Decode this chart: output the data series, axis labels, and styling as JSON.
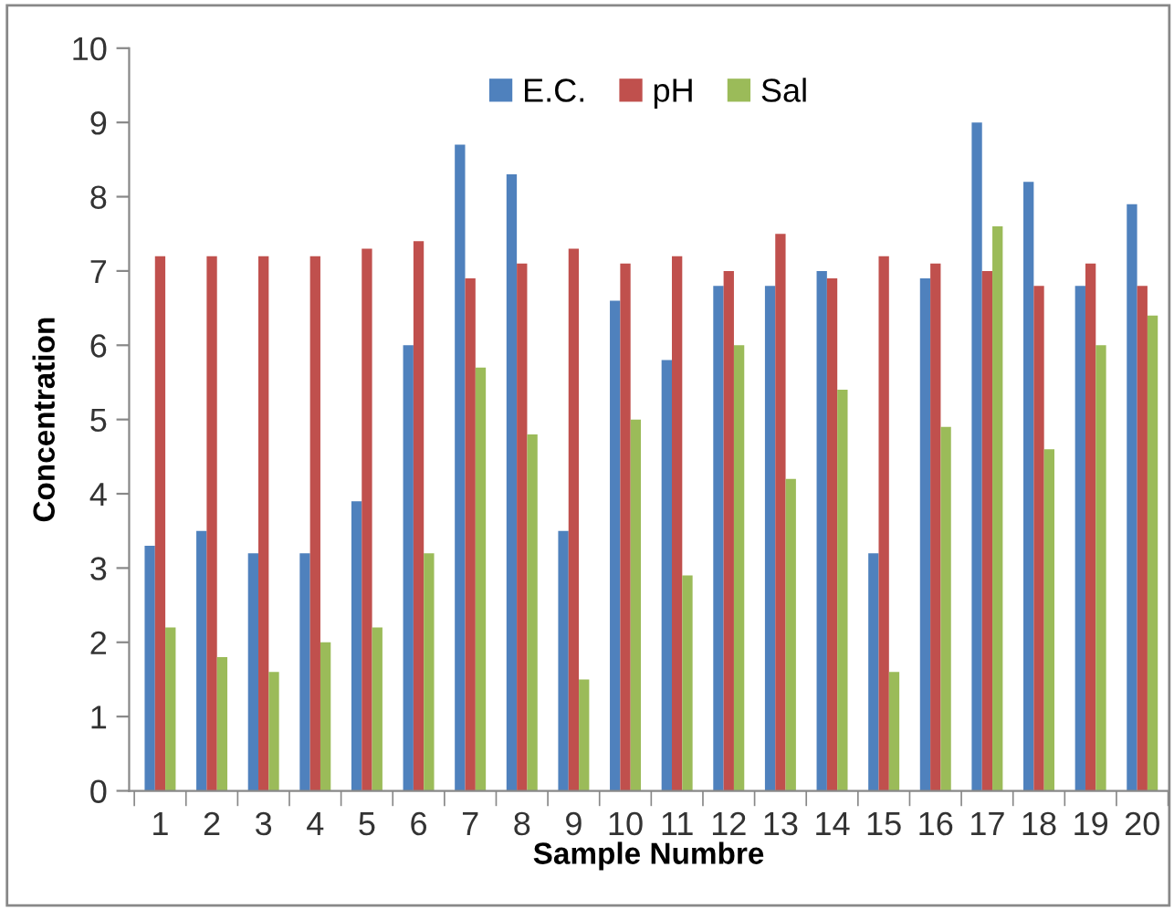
{
  "chart_data": {
    "type": "bar",
    "xlabel": "Sample Numbre",
    "ylabel": "Concentration",
    "categories": [
      "1",
      "2",
      "3",
      "4",
      "5",
      "6",
      "7",
      "8",
      "9",
      "10",
      "11",
      "12",
      "13",
      "14",
      "15",
      "16",
      "17",
      "18",
      "19",
      "20"
    ],
    "series": [
      {
        "name": "E.C.",
        "color": "#4f81bd",
        "values": [
          3.3,
          3.5,
          3.2,
          3.2,
          3.9,
          6.0,
          8.7,
          8.3,
          3.5,
          6.6,
          5.8,
          6.8,
          6.8,
          7.0,
          3.2,
          6.9,
          9.0,
          8.2,
          6.8,
          7.9
        ]
      },
      {
        "name": "pH",
        "color": "#c0504d",
        "values": [
          7.2,
          7.2,
          7.2,
          7.2,
          7.3,
          7.4,
          6.9,
          7.1,
          7.3,
          7.1,
          7.2,
          7.0,
          7.5,
          6.9,
          7.2,
          7.1,
          7.0,
          6.8,
          7.1,
          6.8
        ]
      },
      {
        "name": "Sal",
        "color": "#9bbb59",
        "values": [
          2.2,
          1.8,
          1.6,
          2.0,
          2.2,
          3.2,
          5.7,
          4.8,
          1.5,
          5.0,
          2.9,
          6.0,
          4.2,
          5.4,
          1.6,
          4.9,
          7.6,
          4.6,
          6.0,
          6.4
        ]
      }
    ],
    "ylim": [
      0,
      10
    ],
    "yticks": [
      0,
      1,
      2,
      3,
      4,
      5,
      6,
      7,
      8,
      9,
      10
    ],
    "grid": false,
    "legend": "top"
  }
}
